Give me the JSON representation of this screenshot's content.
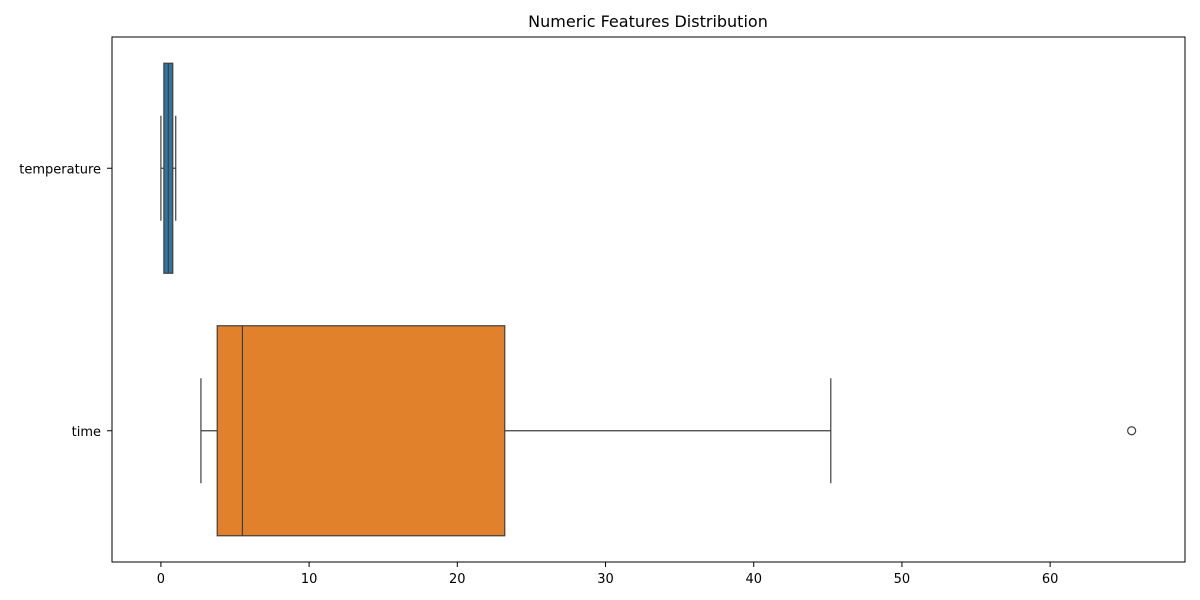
{
  "chart_data": {
    "type": "boxplot",
    "orientation": "horizontal",
    "title": "Numeric Features Distribution",
    "xlabel": "",
    "ylabel": "",
    "xlim": [
      -3.3,
      69.1
    ],
    "x_ticks": [
      0,
      10,
      20,
      30,
      40,
      50,
      60
    ],
    "x_tick_labels": [
      "0",
      "10",
      "20",
      "30",
      "40",
      "50",
      "60"
    ],
    "categories": [
      "temperature",
      "time"
    ],
    "series": [
      {
        "category": "temperature",
        "color": "#3274a1",
        "whisker_low": 0.0,
        "q1": 0.2,
        "median": 0.5,
        "q3": 0.8,
        "whisker_high": 1.0,
        "outliers": []
      },
      {
        "category": "time",
        "color": "#e1812c",
        "whisker_low": 2.7,
        "q1": 3.8,
        "median": 5.5,
        "q3": 23.2,
        "whisker_high": 45.2,
        "outliers": [
          65.5
        ]
      }
    ],
    "grid": false,
    "legend": "none"
  }
}
